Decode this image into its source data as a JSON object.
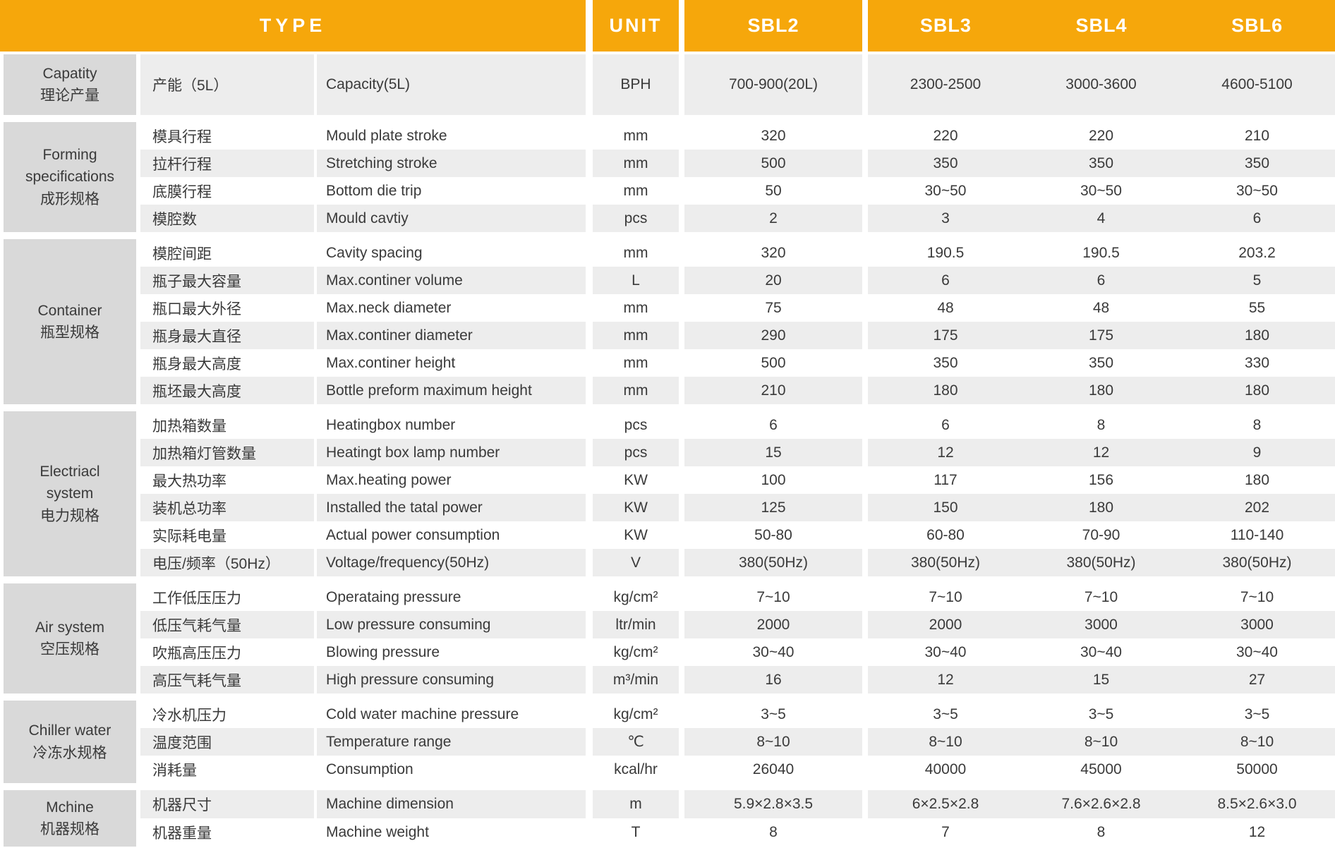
{
  "colors": {
    "accent_orange": "#F6A70B",
    "group_gray": "#D9D9D9",
    "stripe_gray": "#EDEDED",
    "text_dark": "#3A3A3A"
  },
  "header": {
    "type_label": "TYPE",
    "unit_label": "UNIT",
    "models": [
      "SBL2",
      "SBL3",
      "SBL4",
      "SBL6"
    ]
  },
  "sections": [
    {
      "group": "Capatity\n理论产量",
      "rows": [
        {
          "cn": "产能（5L）",
          "en": "Capacity(5L)",
          "unit": "BPH",
          "values": [
            "700-900(20L)",
            "2300-2500",
            "3000-3600",
            "4600-5100"
          ]
        }
      ]
    },
    {
      "group": "Forming\nspecifications\n成形规格",
      "rows": [
        {
          "cn": "模具行程",
          "en": "Mould plate stroke",
          "unit": "mm",
          "values": [
            "320",
            "220",
            "220",
            "210"
          ]
        },
        {
          "cn": "拉杆行程",
          "en": "Stretching stroke",
          "unit": "mm",
          "values": [
            "500",
            "350",
            "350",
            "350"
          ]
        },
        {
          "cn": "底膜行程",
          "en": "Bottom die trip",
          "unit": "mm",
          "values": [
            "50",
            "30~50",
            "30~50",
            "30~50"
          ]
        },
        {
          "cn": "模腔数",
          "en": "Mould cavtiy",
          "unit": "pcs",
          "values": [
            "2",
            "3",
            "4",
            "6"
          ]
        }
      ]
    },
    {
      "group": "Container\n瓶型规格",
      "rows": [
        {
          "cn": "模腔间距",
          "en": "Cavity spacing",
          "unit": "mm",
          "values": [
            "320",
            "190.5",
            "190.5",
            "203.2"
          ]
        },
        {
          "cn": "瓶子最大容量",
          "en": "Max.continer volume",
          "unit": "L",
          "values": [
            "20",
            "6",
            "6",
            "5"
          ]
        },
        {
          "cn": "瓶口最大外径",
          "en": "Max.neck diameter",
          "unit": "mm",
          "values": [
            "75",
            "48",
            "48",
            "55"
          ]
        },
        {
          "cn": "瓶身最大直径",
          "en": "Max.continer diameter",
          "unit": "mm",
          "values": [
            "290",
            "175",
            "175",
            "180"
          ]
        },
        {
          "cn": "瓶身最大高度",
          "en": "Max.continer height",
          "unit": "mm",
          "values": [
            "500",
            "350",
            "350",
            "330"
          ]
        },
        {
          "cn": "瓶坯最大高度",
          "en": "Bottle preform maximum height",
          "unit": "mm",
          "values": [
            "210",
            "180",
            "180",
            "180"
          ]
        }
      ]
    },
    {
      "group": "Electriacl\nsystem\n电力规格",
      "rows": [
        {
          "cn": "加热箱数量",
          "en": "Heatingbox number",
          "unit": "pcs",
          "values": [
            "6",
            "6",
            "8",
            "8"
          ]
        },
        {
          "cn": "加热箱灯管数量",
          "en": "Heatingt box lamp number",
          "unit": "pcs",
          "values": [
            "15",
            "12",
            "12",
            "9"
          ]
        },
        {
          "cn": "最大热功率",
          "en": "Max.heating power",
          "unit": "KW",
          "values": [
            "100",
            "117",
            "156",
            "180"
          ]
        },
        {
          "cn": "装机总功率",
          "en": "Installed the tatal power",
          "unit": "KW",
          "values": [
            "125",
            "150",
            "180",
            "202"
          ]
        },
        {
          "cn": "实际耗电量",
          "en": "Actual power consumption",
          "unit": "KW",
          "values": [
            "50-80",
            "60-80",
            "70-90",
            "110-140"
          ]
        },
        {
          "cn": "电压/频率（50Hz）",
          "en": "Voltage/frequency(50Hz)",
          "unit": "V",
          "values": [
            "380(50Hz)",
            "380(50Hz)",
            "380(50Hz)",
            "380(50Hz)"
          ]
        }
      ]
    },
    {
      "group": "Air system\n空压规格",
      "rows": [
        {
          "cn": "工作低压压力",
          "en": "Operataing pressure",
          "unit": "kg/cm²",
          "values": [
            "7~10",
            "7~10",
            "7~10",
            "7~10"
          ]
        },
        {
          "cn": "低压气耗气量",
          "en": "Low pressure consuming",
          "unit": "ltr/min",
          "values": [
            "2000",
            "2000",
            "3000",
            "3000"
          ]
        },
        {
          "cn": "吹瓶高压压力",
          "en": "Blowing pressure",
          "unit": "kg/cm²",
          "values": [
            "30~40",
            "30~40",
            "30~40",
            "30~40"
          ]
        },
        {
          "cn": "高压气耗气量",
          "en": "High pressure consuming",
          "unit": "m³/min",
          "values": [
            "16",
            "12",
            "15",
            "27"
          ]
        }
      ]
    },
    {
      "group": "Chiller water\n冷冻水规格",
      "rows": [
        {
          "cn": "冷水机压力",
          "en": "Cold water machine pressure",
          "unit": "kg/cm²",
          "values": [
            "3~5",
            "3~5",
            "3~5",
            "3~5"
          ]
        },
        {
          "cn": "温度范围",
          "en": "Temperature range",
          "unit": "℃",
          "values": [
            "8~10",
            "8~10",
            "8~10",
            "8~10"
          ]
        },
        {
          "cn": "消耗量",
          "en": "Consumption",
          "unit": "kcal/hr",
          "values": [
            "26040",
            "40000",
            "45000",
            "50000"
          ]
        }
      ]
    },
    {
      "group": "Mchine\n机器规格",
      "rows": [
        {
          "cn": "机器尺寸",
          "en": "Machine dimension",
          "unit": "m",
          "values": [
            "5.9×2.8×3.5",
            "6×2.5×2.8",
            "7.6×2.6×2.8",
            "8.5×2.6×3.0"
          ]
        },
        {
          "cn": "机器重量",
          "en": "Machine weight",
          "unit": "T",
          "values": [
            "8",
            "7",
            "8",
            "12"
          ]
        }
      ]
    }
  ]
}
